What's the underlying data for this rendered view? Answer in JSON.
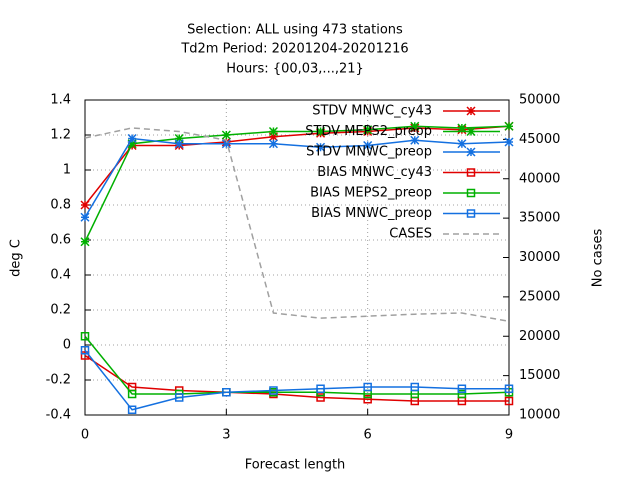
{
  "chart_data": {
    "type": "line",
    "title": [
      "Selection: ALL using   473 stations",
      "Td2m   Period: 20201204-20201216",
      "Hours: {00,03,...,21}"
    ],
    "xlabel": "Forecast length",
    "ylabel": "deg C",
    "y2label": "No cases",
    "x": [
      0,
      1,
      2,
      3,
      4,
      5,
      6,
      7,
      8,
      9
    ],
    "xlim": [
      0,
      9
    ],
    "xticks": [
      0,
      3,
      6,
      9
    ],
    "ylim": [
      -0.4,
      1.4
    ],
    "yticks": [
      -0.4,
      -0.2,
      0,
      0.2,
      0.4,
      0.6,
      0.8,
      1,
      1.2,
      1.4
    ],
    "y2lim": [
      10000,
      50000
    ],
    "y2ticks": [
      10000,
      15000,
      20000,
      25000,
      30000,
      35000,
      40000,
      45000,
      50000
    ],
    "grid": true,
    "legend": "top-right",
    "series": [
      {
        "name": "STDV MNWC_cy43",
        "color": "#e00000",
        "marker": "x",
        "values": [
          0.8,
          1.14,
          1.14,
          1.16,
          1.19,
          1.21,
          1.22,
          1.24,
          1.23,
          1.25
        ]
      },
      {
        "name": "STDV MEPS2_preop",
        "color": "#00b000",
        "marker": "x",
        "values": [
          0.59,
          1.15,
          1.18,
          1.2,
          1.22,
          1.22,
          1.23,
          1.25,
          1.24,
          1.25
        ]
      },
      {
        "name": "STDV MNWC_preop",
        "color": "#1470e0",
        "marker": "x",
        "values": [
          0.73,
          1.18,
          1.15,
          1.15,
          1.15,
          1.13,
          1.14,
          1.17,
          1.15,
          1.16
        ]
      },
      {
        "name": "BIAS MNWC_cy43",
        "color": "#e00000",
        "marker": "square",
        "values": [
          -0.06,
          -0.24,
          -0.26,
          -0.27,
          -0.28,
          -0.3,
          -0.31,
          -0.32,
          -0.32,
          -0.32
        ]
      },
      {
        "name": "BIAS MEPS2_preop",
        "color": "#00b000",
        "marker": "square",
        "values": [
          0.05,
          -0.28,
          -0.28,
          -0.27,
          -0.27,
          -0.27,
          -0.28,
          -0.28,
          -0.28,
          -0.27
        ]
      },
      {
        "name": "BIAS MNWC_preop",
        "color": "#1470e0",
        "marker": "square",
        "values": [
          -0.03,
          -0.37,
          -0.3,
          -0.27,
          -0.26,
          -0.25,
          -0.24,
          -0.24,
          -0.25,
          -0.25
        ]
      },
      {
        "name": "CASES",
        "color": "#a0a0a0",
        "dashed": true,
        "axis": "y2",
        "values": [
          45175,
          46450,
          46000,
          44900,
          22950,
          22300,
          22550,
          22800,
          22950,
          21900
        ]
      }
    ]
  }
}
